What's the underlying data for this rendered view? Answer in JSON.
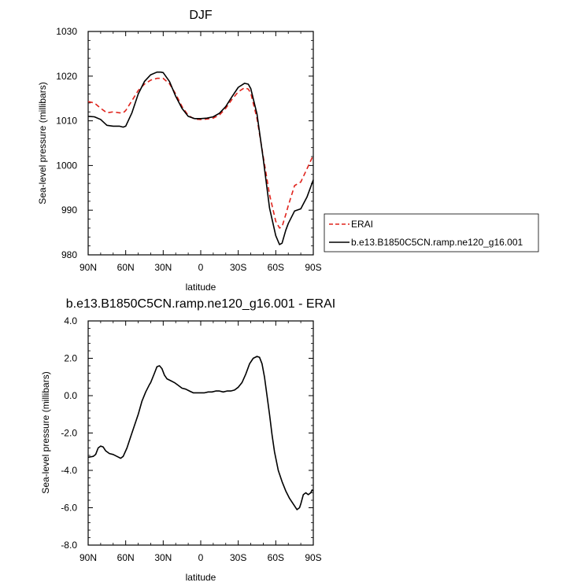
{
  "chart_data": [
    {
      "type": "line",
      "title": "DJF",
      "xlabel": "latitude",
      "ylabel": "Sea-level pressure (millibars)",
      "xlim": [
        -90,
        90
      ],
      "ylim": [
        980,
        1030
      ],
      "xtick_values": [
        -90,
        -60,
        -30,
        0,
        30,
        60,
        90
      ],
      "xtick_labels": [
        "90N",
        "60N",
        "30N",
        "0",
        "30S",
        "60S",
        "90S"
      ],
      "ytick_values": [
        980,
        990,
        1000,
        1010,
        1020,
        1030
      ],
      "ytick_labels": [
        "980",
        "990",
        "1000",
        "1010",
        "1020",
        "1030"
      ],
      "legend_position": "outside-right",
      "series": [
        {
          "name": "ERAI",
          "color": "#e0231c",
          "dash": "dashed",
          "x": [
            -90,
            -85,
            -80,
            -75,
            -70,
            -65,
            -62,
            -60,
            -55,
            -50,
            -45,
            -40,
            -35,
            -30,
            -25,
            -20,
            -15,
            -10,
            -5,
            0,
            5,
            10,
            15,
            20,
            25,
            30,
            35,
            38,
            40,
            45,
            50,
            55,
            60,
            63,
            65,
            68,
            70,
            75,
            80,
            85,
            90
          ],
          "y": [
            1014.3,
            1014,
            1012.8,
            1011.8,
            1012,
            1011.8,
            1011.8,
            1012.3,
            1014.5,
            1016.8,
            1018.2,
            1019.1,
            1019.5,
            1019.5,
            1018.3,
            1016,
            1013.2,
            1011.2,
            1010.4,
            1010.3,
            1010.4,
            1010.6,
            1011.3,
            1012.8,
            1014.8,
            1016.5,
            1017.4,
            1017.1,
            1016.2,
            1010.5,
            1002,
            993.5,
            987.5,
            986,
            986.3,
            989,
            991,
            995.5,
            996.3,
            999.3,
            1002.3
          ]
        },
        {
          "name": "b.e13.B1850C5CN.ramp.ne120_g16.001",
          "color": "#000000",
          "dash": "solid",
          "x": [
            -90,
            -85,
            -80,
            -75,
            -70,
            -65,
            -62,
            -60,
            -55,
            -50,
            -45,
            -40,
            -35,
            -32,
            -30,
            -25,
            -20,
            -15,
            -10,
            -5,
            0,
            5,
            10,
            15,
            20,
            25,
            30,
            35,
            38,
            40,
            45,
            50,
            55,
            60,
            63,
            65,
            68,
            70,
            75,
            80,
            85,
            90
          ],
          "y": [
            1011,
            1010.9,
            1010.3,
            1009,
            1008.8,
            1008.8,
            1008.6,
            1008.8,
            1011.8,
            1016,
            1018.8,
            1020.3,
            1020.9,
            1020.9,
            1020.8,
            1018.8,
            1015.5,
            1012.8,
            1011,
            1010.5,
            1010.5,
            1010.6,
            1010.9,
            1011.7,
            1013.2,
            1015.4,
            1017.5,
            1018.4,
            1018.2,
            1017.2,
            1011.5,
            1001.5,
            990.5,
            984.3,
            982.3,
            982.6,
            985.5,
            987,
            989.8,
            990.3,
            993,
            996.8
          ]
        }
      ]
    },
    {
      "type": "line",
      "title": "b.e13.B1850C5CN.ramp.ne120_g16.001 - ERAI",
      "xlabel": "latitude",
      "ylabel": "Sea-level pressure (millibars)",
      "xlim": [
        -90,
        90
      ],
      "ylim": [
        -8,
        4
      ],
      "xtick_values": [
        -90,
        -60,
        -30,
        0,
        30,
        60,
        90
      ],
      "xtick_labels": [
        "90N",
        "60N",
        "30N",
        "0",
        "30S",
        "60S",
        "90S"
      ],
      "ytick_values": [
        -8,
        -6,
        -4,
        -2,
        0,
        2,
        4
      ],
      "ytick_labels": [
        "-8.0",
        "-6.0",
        "-4.0",
        "-2.0",
        "0.0",
        "2.0",
        "4.0"
      ],
      "series": [
        {
          "color": "#000000",
          "dash": "solid",
          "x": [
            -90,
            -86,
            -84,
            -82,
            -80,
            -78,
            -76,
            -73,
            -70,
            -67,
            -64,
            -62,
            -59,
            -56,
            -53,
            -50,
            -47,
            -44,
            -41,
            -40,
            -37,
            -35,
            -33,
            -31,
            -29,
            -27,
            -24,
            -21,
            -18,
            -15,
            -12,
            -9,
            -6,
            -3,
            0,
            3,
            6,
            9,
            12,
            15,
            18,
            21,
            24,
            27,
            30,
            33,
            36,
            39,
            42,
            45,
            47,
            49,
            51,
            53,
            55,
            57,
            59,
            62,
            65,
            68,
            71,
            74,
            77,
            79,
            80,
            82,
            84,
            86,
            88,
            89,
            90
          ],
          "y": [
            -3.3,
            -3.25,
            -3.15,
            -2.8,
            -2.7,
            -2.75,
            -2.95,
            -3.1,
            -3.15,
            -3.25,
            -3.35,
            -3.25,
            -2.8,
            -2.2,
            -1.6,
            -1.0,
            -0.3,
            0.2,
            0.6,
            0.7,
            1.2,
            1.55,
            1.6,
            1.45,
            1.1,
            0.9,
            0.8,
            0.7,
            0.55,
            0.4,
            0.35,
            0.25,
            0.15,
            0.15,
            0.15,
            0.15,
            0.2,
            0.2,
            0.25,
            0.25,
            0.2,
            0.25,
            0.25,
            0.3,
            0.45,
            0.7,
            1.15,
            1.7,
            2.0,
            2.1,
            2.05,
            1.7,
            1.0,
            0.0,
            -1.0,
            -2.1,
            -3.0,
            -4.0,
            -4.6,
            -5.1,
            -5.5,
            -5.8,
            -6.1,
            -6.0,
            -5.8,
            -5.3,
            -5.2,
            -5.3,
            -5.2,
            -5.05,
            -5.1
          ]
        }
      ]
    }
  ]
}
